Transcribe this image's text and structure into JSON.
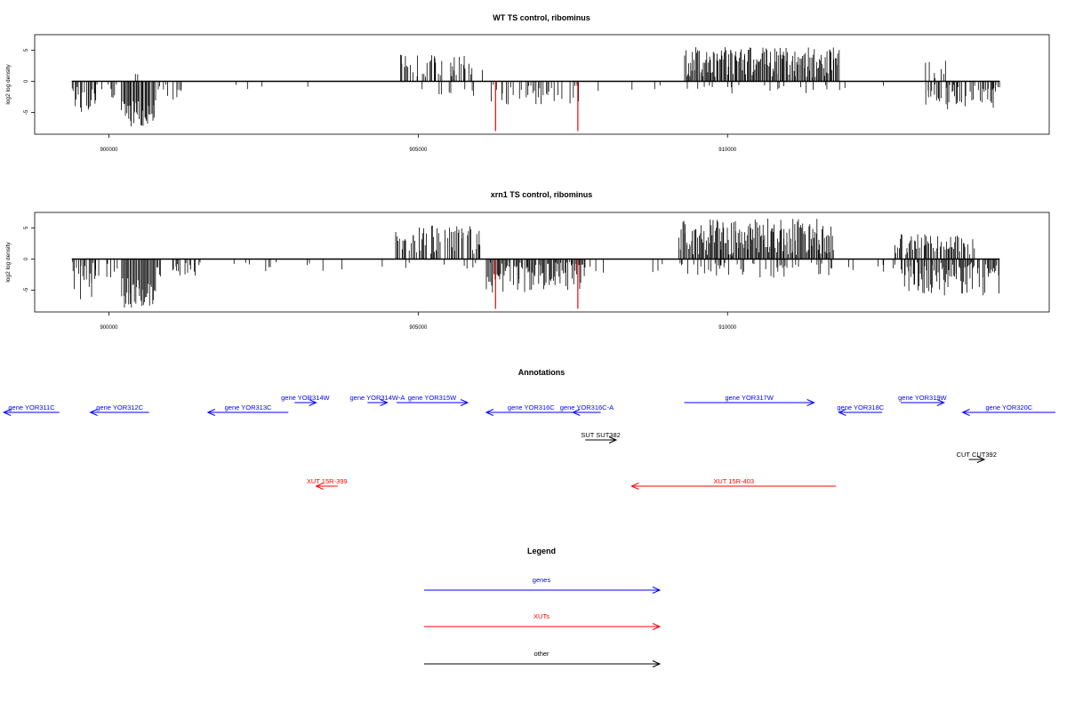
{
  "chart_data": [
    {
      "type": "bar",
      "title": "WT TS control, ribominus",
      "ylabel": "log2 log density",
      "xlim": [
        898800,
        915200
      ],
      "ylim": [
        -8.5,
        7.5
      ],
      "xticks": [
        900000,
        905000,
        910000
      ],
      "xtick_labels": [
        "900000",
        "905000",
        "910000"
      ],
      "yticks": [
        -5,
        0,
        5
      ],
      "ytick_labels": [
        "-5",
        "0",
        "5"
      ],
      "track_range": [
        899400,
        914400
      ],
      "bar_color": "#000000",
      "marker_color": "#ff0000",
      "markers": [
        {
          "x": 906250,
          "y": -8
        },
        {
          "x": 907580,
          "y": -8
        }
      ],
      "seed": 17,
      "segments": [
        {
          "from": 899400,
          "to": 899800,
          "min": -5,
          "max": -0.5,
          "density": 0.6,
          "side": "neg"
        },
        {
          "from": 899800,
          "to": 900150,
          "min": -3,
          "max": -0.5,
          "density": 0.3,
          "side": "neg"
        },
        {
          "from": 900200,
          "to": 900750,
          "min": -7.5,
          "max": -3,
          "density": 1.0,
          "side": "neg"
        },
        {
          "from": 900330,
          "to": 900470,
          "min": 0.3,
          "max": 1.2,
          "density": 0.2,
          "side": "pos"
        },
        {
          "from": 900750,
          "to": 901300,
          "min": -3,
          "max": -0.5,
          "density": 0.3,
          "side": "neg"
        },
        {
          "from": 901600,
          "to": 903500,
          "min": -2,
          "max": -0.5,
          "density": 0.04,
          "side": "neg"
        },
        {
          "from": 904700,
          "to": 905900,
          "min": 0.5,
          "max": 4.5,
          "density": 0.5,
          "side": "pos"
        },
        {
          "from": 904700,
          "to": 905900,
          "min": -2.5,
          "max": -0.5,
          "density": 0.15,
          "side": "neg"
        },
        {
          "from": 905900,
          "to": 906150,
          "min": 0.5,
          "max": 2,
          "density": 0.1,
          "side": "pos"
        },
        {
          "from": 906150,
          "to": 907600,
          "min": -4,
          "max": -0.5,
          "density": 0.4,
          "side": "neg"
        },
        {
          "from": 907600,
          "to": 909000,
          "min": -2,
          "max": -0.5,
          "density": 0.05,
          "side": "neg"
        },
        {
          "from": 909300,
          "to": 911800,
          "min": 0.5,
          "max": 5.5,
          "density": 1.0,
          "side": "pos"
        },
        {
          "from": 909300,
          "to": 911800,
          "min": -2,
          "max": -0.5,
          "density": 0.1,
          "side": "neg"
        },
        {
          "from": 911800,
          "to": 913000,
          "min": -1.5,
          "max": -0.5,
          "density": 0.08,
          "side": "neg"
        },
        {
          "from": 912900,
          "to": 913600,
          "min": 0.5,
          "max": 3.5,
          "density": 0.25,
          "side": "pos"
        },
        {
          "from": 913200,
          "to": 914400,
          "min": -5,
          "max": -0.5,
          "density": 0.7,
          "side": "neg"
        }
      ]
    },
    {
      "type": "bar",
      "title": "xrn1 TS control, ribominus",
      "ylabel": "log2 log density",
      "xlim": [
        898800,
        915200
      ],
      "ylim": [
        -8.5,
        7.5
      ],
      "xticks": [
        900000,
        905000,
        910000
      ],
      "xtick_labels": [
        "900000",
        "905000",
        "910000"
      ],
      "yticks": [
        -5,
        0,
        5
      ],
      "ytick_labels": [
        "-5",
        "0",
        "5"
      ],
      "track_range": [
        899400,
        914400
      ],
      "bar_color": "#000000",
      "marker_color": "#ff0000",
      "markers": [
        {
          "x": 906250,
          "y": -8
        },
        {
          "x": 907580,
          "y": -8
        }
      ],
      "seed": 41,
      "segments": [
        {
          "from": 899400,
          "to": 899800,
          "min": -6.5,
          "max": -0.5,
          "density": 0.7,
          "side": "neg"
        },
        {
          "from": 899800,
          "to": 900150,
          "min": -3,
          "max": -0.5,
          "density": 0.3,
          "side": "neg"
        },
        {
          "from": 900200,
          "to": 900750,
          "min": -8,
          "max": -3,
          "density": 1.0,
          "side": "neg"
        },
        {
          "from": 900750,
          "to": 901500,
          "min": -3,
          "max": -0.5,
          "density": 0.3,
          "side": "neg"
        },
        {
          "from": 901500,
          "to": 903800,
          "min": -2,
          "max": -0.5,
          "density": 0.06,
          "side": "neg"
        },
        {
          "from": 904400,
          "to": 904550,
          "min": -3,
          "max": -1,
          "density": 0.2,
          "side": "neg"
        },
        {
          "from": 904600,
          "to": 906000,
          "min": 0.5,
          "max": 5.5,
          "density": 0.7,
          "side": "pos"
        },
        {
          "from": 904600,
          "to": 906000,
          "min": -2,
          "max": -0.5,
          "density": 0.15,
          "side": "neg"
        },
        {
          "from": 906100,
          "to": 907700,
          "min": -5.5,
          "max": -0.5,
          "density": 0.9,
          "side": "neg"
        },
        {
          "from": 907700,
          "to": 909000,
          "min": -2.5,
          "max": -0.5,
          "density": 0.1,
          "side": "neg"
        },
        {
          "from": 909200,
          "to": 911700,
          "min": 0.5,
          "max": 6.5,
          "density": 1.0,
          "side": "pos"
        },
        {
          "from": 909200,
          "to": 911700,
          "min": -3,
          "max": -0.5,
          "density": 0.3,
          "side": "neg"
        },
        {
          "from": 911700,
          "to": 912700,
          "min": -2.5,
          "max": -0.5,
          "density": 0.15,
          "side": "neg"
        },
        {
          "from": 912700,
          "to": 914000,
          "min": 0.5,
          "max": 4,
          "density": 0.6,
          "side": "pos"
        },
        {
          "from": 912800,
          "to": 914400,
          "min": -6,
          "max": -0.5,
          "density": 0.8,
          "side": "neg"
        }
      ]
    }
  ],
  "annotations": {
    "title": "Annotations",
    "items": [
      {
        "label": "gene YOR311C",
        "from": 898300,
        "to": 899200,
        "row": 2,
        "color": "#0000ff",
        "dir": "left"
      },
      {
        "label": "gene YOR312C",
        "from": 899700,
        "to": 900650,
        "row": 2,
        "color": "#0000ff",
        "dir": "left"
      },
      {
        "label": "gene YOR313C",
        "from": 901600,
        "to": 902900,
        "row": 2,
        "color": "#0000ff",
        "dir": "left"
      },
      {
        "label": "gene YOR314W",
        "from": 903000,
        "to": 903350,
        "row": 1,
        "color": "#0000ff",
        "dir": "right"
      },
      {
        "label": "gene YOR314W-A",
        "from": 904180,
        "to": 904500,
        "row": 1,
        "color": "#0000ff",
        "dir": "right"
      },
      {
        "label": "gene YOR315W",
        "from": 904650,
        "to": 905800,
        "row": 1,
        "color": "#0000ff",
        "dir": "right"
      },
      {
        "label": "gene YOR316C",
        "from": 906100,
        "to": 907550,
        "row": 2,
        "color": "#0000ff",
        "dir": "left"
      },
      {
        "label": "gene YOR316C-A",
        "from": 907500,
        "to": 907950,
        "row": 2,
        "color": "#0000ff",
        "dir": "left"
      },
      {
        "label": "gene YOR317W",
        "from": 909300,
        "to": 911400,
        "row": 1,
        "color": "#0000ff",
        "dir": "right"
      },
      {
        "label": "gene YOR318C",
        "from": 911800,
        "to": 912500,
        "row": 2,
        "color": "#0000ff",
        "dir": "left"
      },
      {
        "label": "gene YOR319W",
        "from": 912800,
        "to": 913500,
        "row": 1,
        "color": "#0000ff",
        "dir": "right"
      },
      {
        "label": "gene YOR320C",
        "from": 913800,
        "to": 915300,
        "row": 2,
        "color": "#0000ff",
        "dir": "left"
      },
      {
        "label": "SUT SUT382",
        "from": 907700,
        "to": 908200,
        "row": 3,
        "color": "#000000",
        "dir": "right"
      },
      {
        "label": "CUT CUT392",
        "from": 913900,
        "to": 914150,
        "row": 4,
        "color": "#000000",
        "dir": "right"
      },
      {
        "label": "XUT 15R-399",
        "from": 903350,
        "to": 903700,
        "row": 5,
        "color": "#ff0000",
        "dir": "left"
      },
      {
        "label": "XUT 15R-403",
        "from": 908450,
        "to": 911750,
        "row": 5,
        "color": "#ff0000",
        "dir": "left"
      }
    ]
  },
  "legend": {
    "title": "Legend",
    "items": [
      {
        "label": "genes",
        "color": "#0000ff"
      },
      {
        "label": "XUTs",
        "color": "#ff0000"
      },
      {
        "label": "other",
        "color": "#000000"
      }
    ]
  }
}
